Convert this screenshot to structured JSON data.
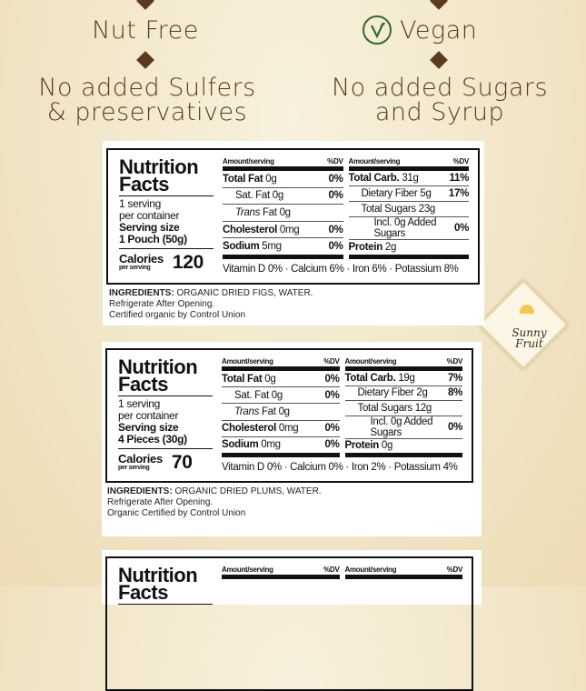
{
  "claims": {
    "left_top": "Nut Free",
    "right_top": "Vegan",
    "left_bottom": [
      "No added Sulfers",
      "& preservatives"
    ],
    "right_bottom": [
      "No added Sugars",
      "and Syrup"
    ],
    "vegan_icon": "leaf-circle-icon",
    "color": "#5b3b1c"
  },
  "brand": {
    "logo_text": "Sunny Fruit"
  },
  "labels": [
    {
      "title": [
        "Nutrition",
        "Facts"
      ],
      "servings": [
        "1 serving",
        "per container"
      ],
      "serving_size_label": "Serving size",
      "serving_size": "1 Pouch (50g)",
      "calories_label": "Calories",
      "calories_sub": "per serving",
      "calories": "120",
      "header": {
        "amount": "Amount/serving",
        "dv": "%DV"
      },
      "left_rows": [
        {
          "name": "Total Fat",
          "value": "0g",
          "dv": "0%",
          "bold": true
        },
        {
          "name": "Sat. Fat",
          "value": "0g",
          "dv": "0%",
          "indent": 1
        },
        {
          "name": "Trans",
          "value": "Fat 0g",
          "dv": "",
          "indent": 1,
          "italic": true
        },
        {
          "name": "Cholesterol",
          "value": "0mg",
          "dv": "0%",
          "bold": true
        },
        {
          "name": "Sodium",
          "value": "5mg",
          "dv": "0%",
          "bold": true
        }
      ],
      "right_rows": [
        {
          "name": "Total Carb.",
          "value": "31g",
          "dv": "11%",
          "bold": true
        },
        {
          "name": "Dietary Fiber",
          "value": "5g",
          "dv": "17%",
          "indent": 1
        },
        {
          "name": "Total Sugars",
          "value": "23g",
          "dv": "",
          "indent": 1
        },
        {
          "name": "Incl. 0g Added Sugars",
          "value": "",
          "dv": "0%",
          "indent": 2
        },
        {
          "name": "Protein",
          "value": "2g",
          "dv": "",
          "bold": true
        }
      ],
      "vitamins": "Vitamin D 0% · Calcium 6% · Iron 6% · Potassium 8%",
      "ingredients_label": "INGREDIENTS:",
      "ingredients": "ORGANIC DRIED FIGS, WATER.",
      "notes": [
        "Refrigerate After Opening.",
        "Certified organic by Control Union"
      ]
    },
    {
      "title": [
        "Nutrition",
        "Facts"
      ],
      "servings": [
        "1 serving",
        "per container"
      ],
      "serving_size_label": "Serving size",
      "serving_size": "4 Pieces (30g)",
      "calories_label": "Calories",
      "calories_sub": "per serving",
      "calories": "70",
      "header": {
        "amount": "Amount/serving",
        "dv": "%DV"
      },
      "left_rows": [
        {
          "name": "Total Fat",
          "value": "0g",
          "dv": "0%",
          "bold": true
        },
        {
          "name": "Sat. Fat",
          "value": "0g",
          "dv": "0%",
          "indent": 1
        },
        {
          "name": "Trans",
          "value": "Fat 0g",
          "dv": "",
          "indent": 1,
          "italic": true
        },
        {
          "name": "Cholesterol",
          "value": "0mg",
          "dv": "0%",
          "bold": true
        },
        {
          "name": "Sodium",
          "value": "0mg",
          "dv": "0%",
          "bold": true
        }
      ],
      "right_rows": [
        {
          "name": "Total Carb.",
          "value": "19g",
          "dv": "7%",
          "bold": true
        },
        {
          "name": "Dietary Fiber",
          "value": "2g",
          "dv": "8%",
          "indent": 1
        },
        {
          "name": "Total Sugars",
          "value": "12g",
          "dv": "",
          "indent": 1
        },
        {
          "name": "Incl. 0g Added Sugars",
          "value": "",
          "dv": "0%",
          "indent": 2
        },
        {
          "name": "Protein",
          "value": "0g",
          "dv": "",
          "bold": true
        }
      ],
      "vitamins": "Vitamin D 0%  ·  Calcium 0%  ·  Iron 2%  ·  Potassium 4%",
      "ingredients_label": "INGREDIENTS:",
      "ingredients": "ORGANIC DRIED PLUMS, WATER.",
      "notes": [
        "Refrigerate After Opening.",
        "Organic Certified by Control Union"
      ]
    },
    {
      "title": [
        "Nutrition",
        "Facts"
      ],
      "header": {
        "amount": "Amount/serving",
        "dv": "%DV"
      }
    }
  ]
}
